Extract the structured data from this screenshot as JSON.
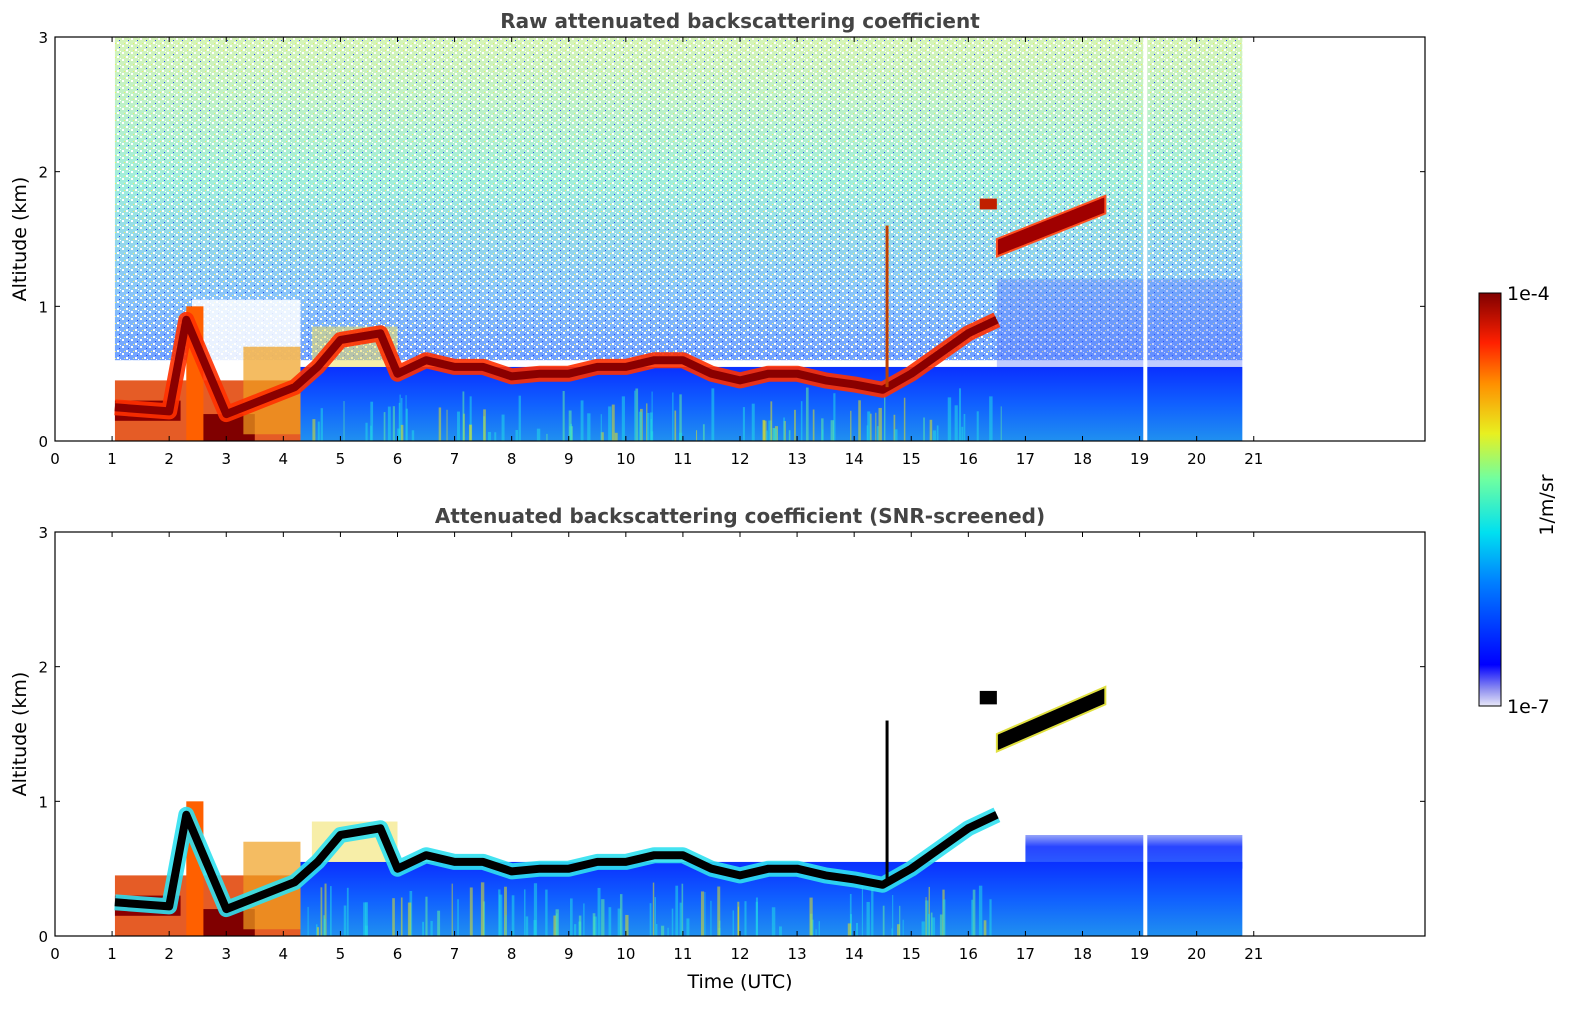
{
  "chart_data": [
    {
      "type": "heatmap",
      "title": "Raw attenuated backscattering coefficient",
      "xlabel": "",
      "ylabel": "Altitude (km)",
      "xlim": [
        0,
        24
      ],
      "ylim": [
        0,
        3
      ],
      "x_ticks": [
        "0",
        "1",
        "2",
        "3",
        "4",
        "5",
        "6",
        "7",
        "8",
        "9",
        "10",
        "11",
        "12",
        "13",
        "14",
        "15",
        "16",
        "17",
        "18",
        "19",
        "20",
        "21"
      ],
      "y_ticks": [
        "0",
        "1",
        "2",
        "3"
      ],
      "data_time_range": [
        1.05,
        20.8
      ],
      "gap_at": 19.1,
      "cloud_base_km": [
        [
          1.05,
          0.25
        ],
        [
          2.0,
          0.22
        ],
        [
          2.3,
          0.9
        ],
        [
          2.6,
          0.6
        ],
        [
          3.0,
          0.2
        ],
        [
          3.6,
          0.3
        ],
        [
          4.2,
          0.4
        ],
        [
          4.6,
          0.55
        ],
        [
          5.0,
          0.75
        ],
        [
          5.7,
          0.8
        ],
        [
          6.0,
          0.5
        ],
        [
          6.5,
          0.6
        ],
        [
          7.0,
          0.55
        ],
        [
          7.5,
          0.55
        ],
        [
          8.0,
          0.48
        ],
        [
          8.5,
          0.5
        ],
        [
          9.0,
          0.5
        ],
        [
          9.5,
          0.55
        ],
        [
          10.0,
          0.55
        ],
        [
          10.5,
          0.6
        ],
        [
          11.0,
          0.6
        ],
        [
          11.5,
          0.5
        ],
        [
          12.0,
          0.45
        ],
        [
          12.5,
          0.5
        ],
        [
          13.0,
          0.5
        ],
        [
          13.5,
          0.45
        ],
        [
          14.0,
          0.42
        ],
        [
          14.5,
          0.38
        ],
        [
          15.0,
          0.5
        ],
        [
          15.5,
          0.65
        ],
        [
          16.0,
          0.8
        ],
        [
          16.5,
          0.9
        ]
      ],
      "elevated_layer": {
        "x": [
          16.5,
          18.4
        ],
        "y": [
          1.5,
          1.82
        ]
      },
      "elevated_patch": {
        "x": [
          16.2,
          16.5
        ],
        "y": [
          1.72,
          1.8
        ]
      },
      "colorbar": {
        "min_label": "1e-7",
        "max_label": "1e-4",
        "label": "1/m/sr",
        "scale": "log",
        "colormap": "jet"
      }
    },
    {
      "type": "heatmap",
      "title": "Attenuated backscattering coefficient (SNR-screened)",
      "xlabel": "Time (UTC)",
      "ylabel": "Altitude (km)",
      "xlim": [
        0,
        24
      ],
      "ylim": [
        0,
        3
      ],
      "x_ticks": [
        "0",
        "1",
        "2",
        "3",
        "4",
        "5",
        "6",
        "7",
        "8",
        "9",
        "10",
        "11",
        "12",
        "13",
        "14",
        "15",
        "16",
        "17",
        "18",
        "19",
        "20",
        "21"
      ],
      "y_ticks": [
        "0",
        "1",
        "2",
        "3"
      ],
      "data_time_range": [
        1.05,
        20.8
      ],
      "gap_at": 19.1,
      "elevated_layer": {
        "x": [
          16.5,
          18.4
        ],
        "y": [
          1.5,
          1.85
        ]
      },
      "elevated_patch": {
        "x": [
          16.2,
          16.5
        ],
        "y": [
          1.72,
          1.82
        ]
      }
    }
  ],
  "colors": {
    "frame": "#000000",
    "title": "#444444",
    "cloud_core": "#000000",
    "gap": "#ffffff"
  }
}
